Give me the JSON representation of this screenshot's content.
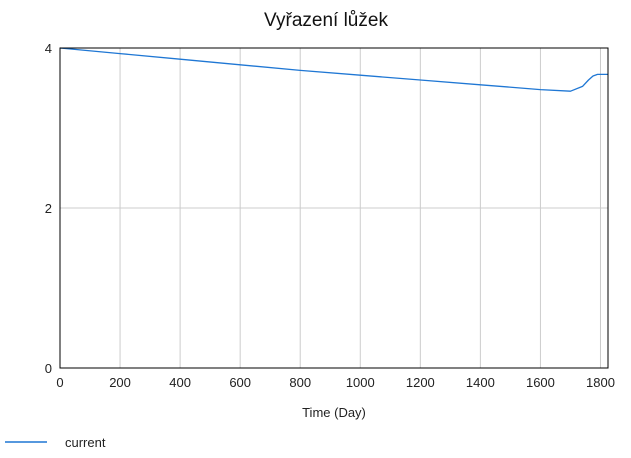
{
  "chart_data": {
    "type": "line",
    "title": "Vyřazení lůžek",
    "xlabel": "Time (Day)",
    "ylabel": "",
    "xlim": [
      0,
      1825
    ],
    "ylim": [
      0,
      4
    ],
    "xticks": [
      0,
      200,
      400,
      600,
      800,
      1000,
      1200,
      1400,
      1600,
      1800
    ],
    "yticks": [
      0,
      2,
      4
    ],
    "grid": true,
    "legend_position": "bottom-left",
    "series": [
      {
        "name": "current",
        "color": "#1f77d4",
        "x": [
          0,
          200,
          400,
          600,
          800,
          1000,
          1200,
          1400,
          1600,
          1700,
          1740,
          1760,
          1775,
          1790,
          1810,
          1825
        ],
        "y": [
          4.0,
          3.93,
          3.86,
          3.79,
          3.72,
          3.66,
          3.6,
          3.54,
          3.48,
          3.46,
          3.52,
          3.6,
          3.65,
          3.67,
          3.67,
          3.67
        ]
      }
    ]
  }
}
